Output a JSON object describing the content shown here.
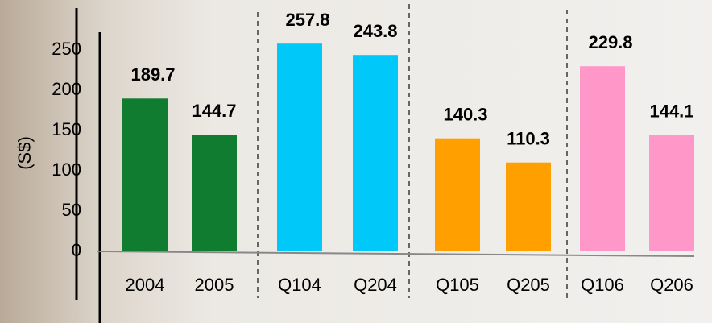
{
  "chart_data": {
    "type": "bar",
    "y_label": "(S$)",
    "categories": [
      "2004",
      "2005",
      "Q104",
      "Q204",
      "Q105",
      "Q205",
      "Q106",
      "Q206"
    ],
    "values": [
      189.7,
      144.7,
      257.8,
      243.8,
      140.3,
      110.3,
      229.8,
      144.1
    ],
    "colors": [
      "#107c30",
      "#107c30",
      "#00c8f8",
      "#00c8f8",
      "#ffa000",
      "#ffa000",
      "#ff98c8",
      "#ff98c8"
    ],
    "ylim": [
      0,
      300
    ],
    "yticks": [
      0,
      50,
      100,
      150,
      200,
      250
    ]
  }
}
